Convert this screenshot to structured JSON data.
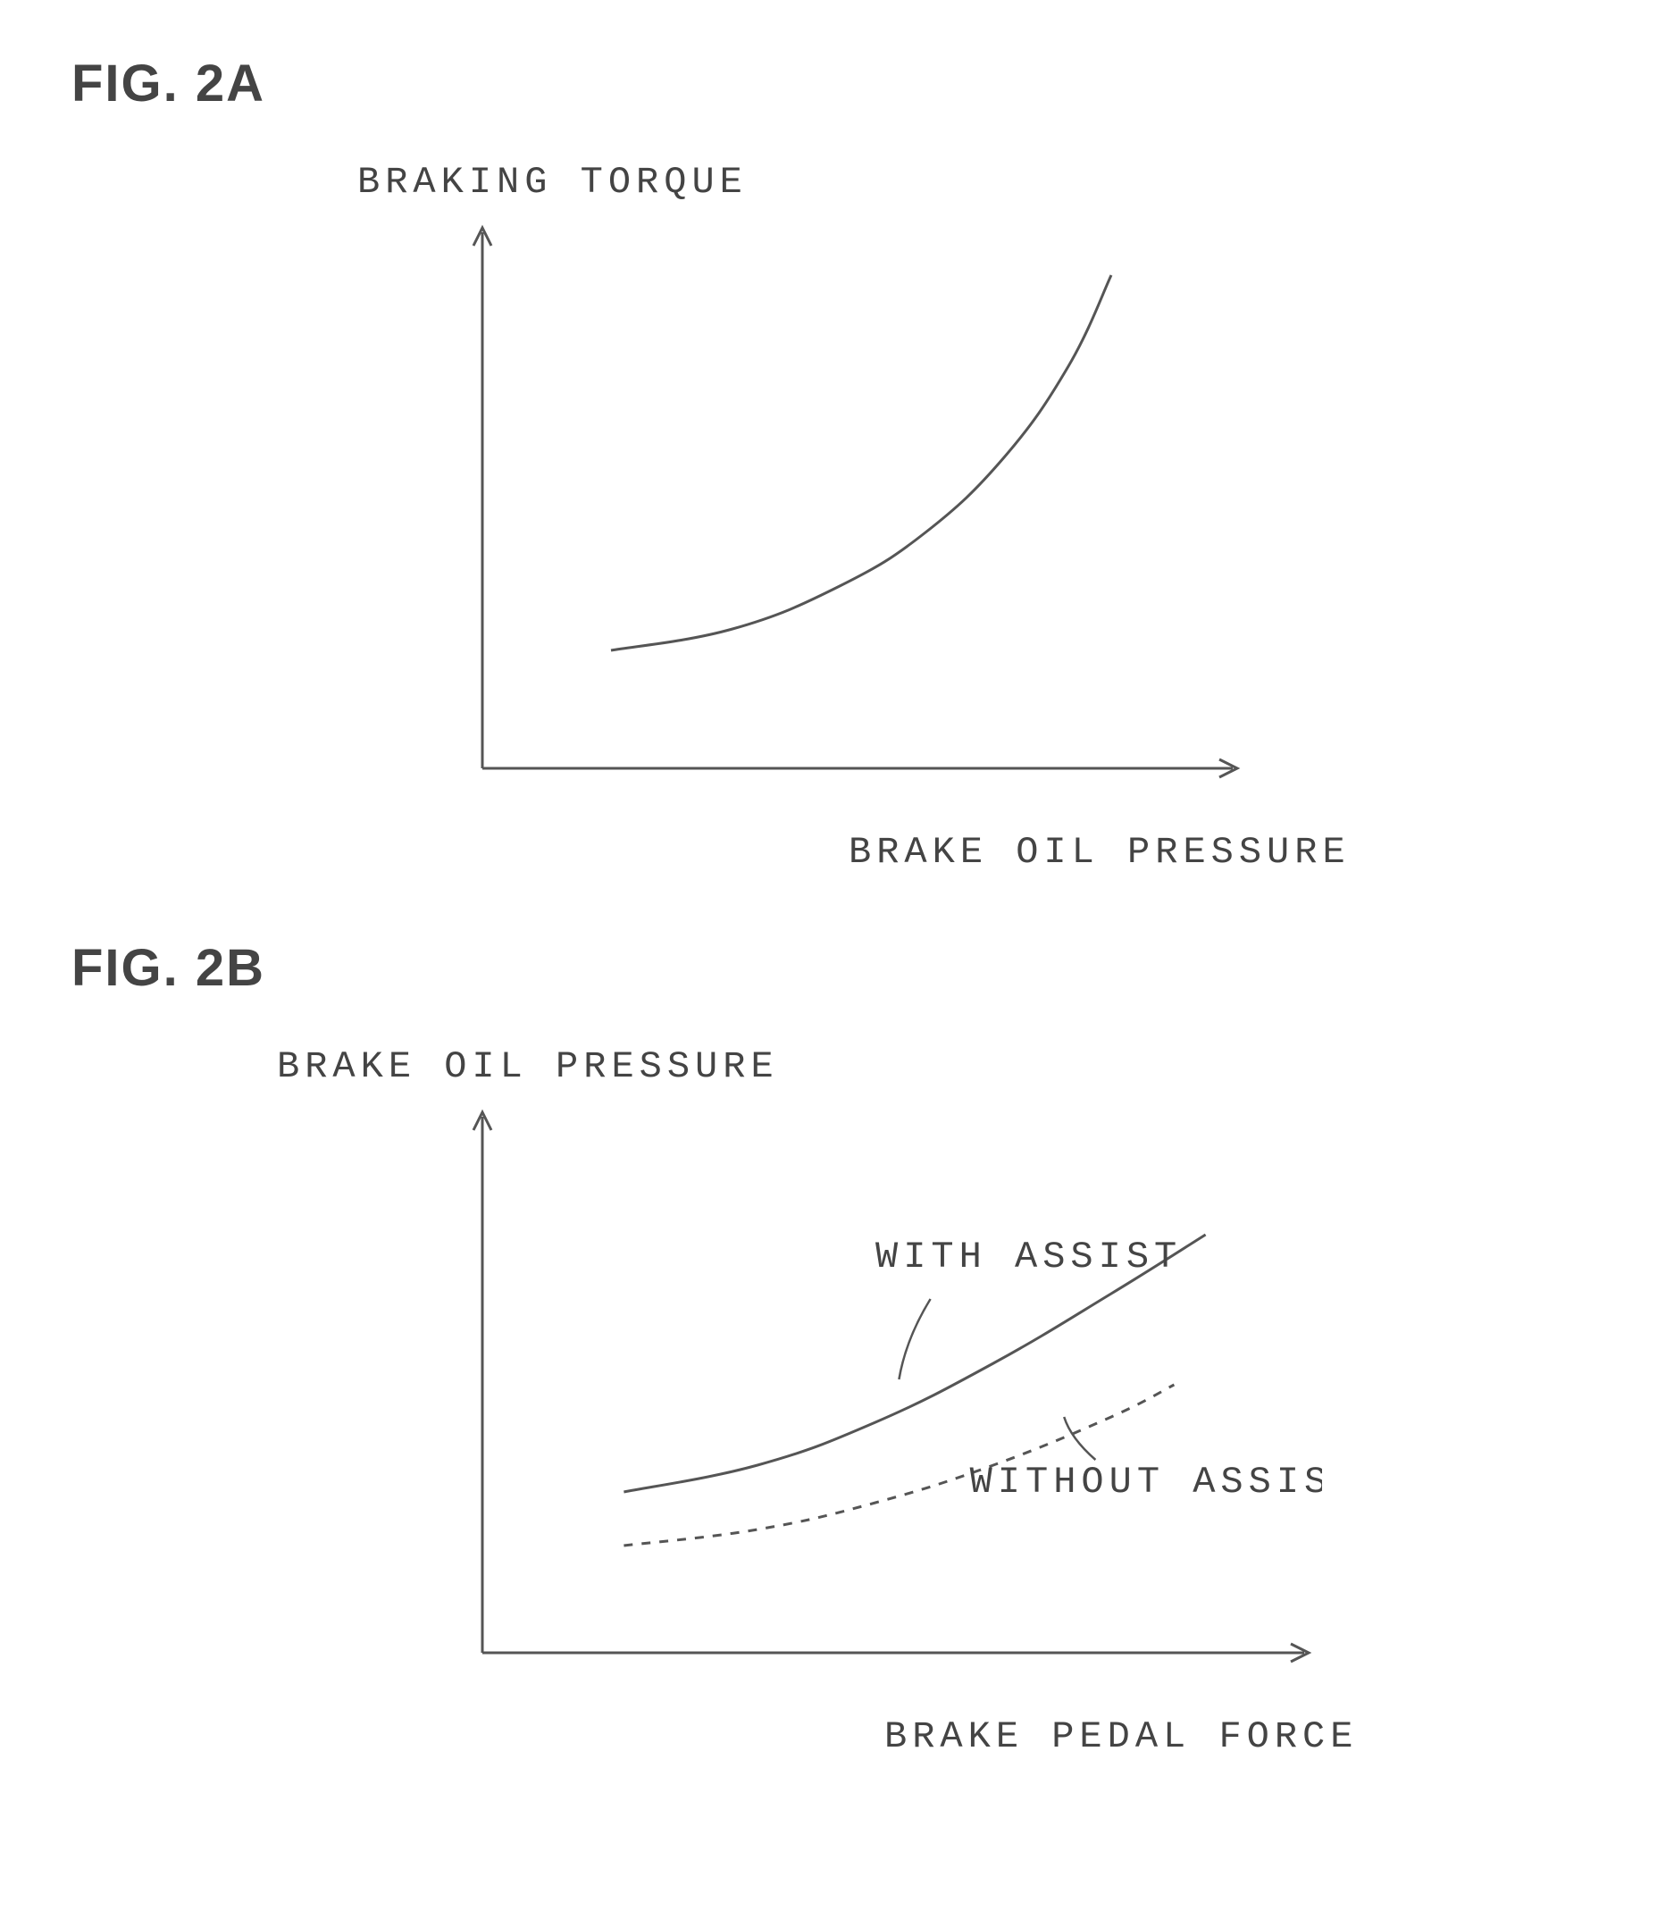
{
  "figA": {
    "title": "FIG. 2A",
    "y_label": "BRAKING TORQUE",
    "x_label": "BRAKE OIL PRESSURE",
    "axis_color": "#555555",
    "axis_stroke_width": 3,
    "curve": {
      "type": "line",
      "color": "#555555",
      "stroke_width": 3,
      "dash": "none",
      "points": [
        {
          "x": 0.18,
          "y": 0.78
        },
        {
          "x": 0.35,
          "y": 0.74
        },
        {
          "x": 0.5,
          "y": 0.66
        },
        {
          "x": 0.62,
          "y": 0.56
        },
        {
          "x": 0.73,
          "y": 0.42
        },
        {
          "x": 0.82,
          "y": 0.25
        },
        {
          "x": 0.88,
          "y": 0.08
        }
      ]
    },
    "background_color": "#ffffff"
  },
  "figB": {
    "title": "FIG. 2B",
    "y_label": "BRAKE OIL PRESSURE",
    "x_label": "BRAKE PEDAL FORCE",
    "axis_color": "#555555",
    "axis_stroke_width": 3,
    "series": [
      {
        "label": "WITH ASSIST",
        "color": "#555555",
        "stroke_width": 3,
        "dash": "none",
        "points": [
          {
            "x": 0.18,
            "y": 0.7
          },
          {
            "x": 0.35,
            "y": 0.65
          },
          {
            "x": 0.5,
            "y": 0.57
          },
          {
            "x": 0.65,
            "y": 0.46
          },
          {
            "x": 0.8,
            "y": 0.33
          },
          {
            "x": 0.92,
            "y": 0.22
          }
        ],
        "label_pos": {
          "x": 0.5,
          "y": 0.28
        },
        "leader": {
          "from": {
            "x": 0.57,
            "y": 0.34
          },
          "to": {
            "x": 0.53,
            "y": 0.49
          }
        }
      },
      {
        "label": "WITHOUT ASSIST",
        "color": "#555555",
        "stroke_width": 3,
        "dash": "10,10",
        "points": [
          {
            "x": 0.18,
            "y": 0.8
          },
          {
            "x": 0.35,
            "y": 0.77
          },
          {
            "x": 0.5,
            "y": 0.72
          },
          {
            "x": 0.65,
            "y": 0.65
          },
          {
            "x": 0.8,
            "y": 0.56
          },
          {
            "x": 0.88,
            "y": 0.5
          }
        ],
        "label_pos": {
          "x": 0.62,
          "y": 0.7
        },
        "leader": {
          "from": {
            "x": 0.78,
            "y": 0.64
          },
          "to": {
            "x": 0.74,
            "y": 0.56
          }
        }
      }
    ],
    "background_color": "#ffffff"
  },
  "label_fontsize": 42,
  "title_fontsize": 58,
  "text_color": "#444444"
}
